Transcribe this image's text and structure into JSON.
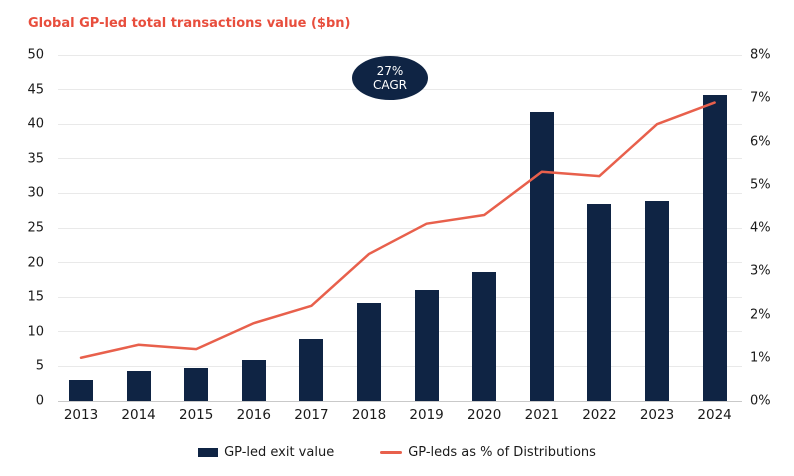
{
  "title": "Global GP-led total transactions value ($bn)",
  "badge": {
    "line1": "27%",
    "line2": "CAGR"
  },
  "legend": [
    {
      "label": "GP-led exit value",
      "type": "bar"
    },
    {
      "label": "GP-leds as % of Distributions",
      "type": "line"
    }
  ],
  "colors": {
    "bar": "#0f2444",
    "line": "#e8604c",
    "title": "#e84e3d",
    "grid": "#e9e9e9",
    "axis_line": "#c9c9c9",
    "text": "#1a1a1a",
    "badge_bg": "#0f2444",
    "badge_text": "#ffffff"
  },
  "chart_data": {
    "type": "bar+line combo",
    "title": "Global GP-led total transactions value ($bn)",
    "categories": [
      "2013",
      "2014",
      "2015",
      "2016",
      "2017",
      "2018",
      "2019",
      "2020",
      "2021",
      "2022",
      "2023",
      "2024"
    ],
    "series": [
      {
        "name": "GP-led exit value",
        "type": "bar",
        "axis": "left",
        "values": [
          3.0,
          4.4,
          4.7,
          5.9,
          9.0,
          14.1,
          16.1,
          18.6,
          41.8,
          28.4,
          28.9,
          44.2
        ]
      },
      {
        "name": "GP-leds as % of Distributions",
        "type": "line",
        "axis": "right",
        "values": [
          1.0,
          1.3,
          1.2,
          1.8,
          2.2,
          3.4,
          4.1,
          4.3,
          5.3,
          5.2,
          6.4,
          6.9
        ]
      }
    ],
    "left_axis": {
      "min": 0,
      "max": 50,
      "step": 5,
      "ticks": [
        0,
        5,
        10,
        15,
        20,
        25,
        30,
        35,
        40,
        45,
        50
      ]
    },
    "right_axis": {
      "min": 0,
      "max": 8,
      "step": 1,
      "unit": "%",
      "ticks": [
        "0%",
        "1%",
        "2%",
        "3%",
        "4%",
        "5%",
        "6%",
        "7%",
        "8%"
      ]
    },
    "grid": "horizontal gridlines on",
    "legend_position": "bottom",
    "annotation": "27% CAGR"
  }
}
